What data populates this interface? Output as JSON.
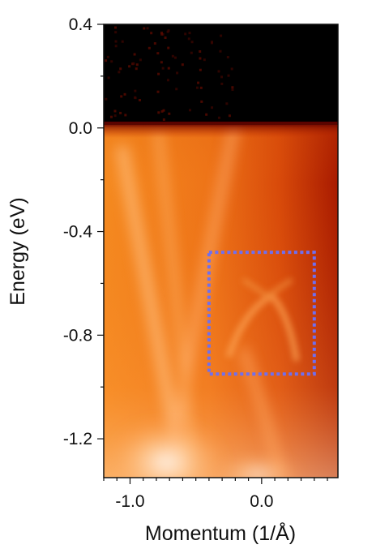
{
  "chart_data": {
    "type": "heatmap",
    "title": "",
    "xlabel": "Momentum (1/Å)",
    "ylabel": "Energy (eV)",
    "xlim": [
      -1.2,
      0.58
    ],
    "ylim": [
      -1.35,
      0.4
    ],
    "x_ticks": [
      {
        "value": -1.0,
        "label": "-1.0"
      },
      {
        "value": 0.0,
        "label": "0.0"
      }
    ],
    "y_ticks": [
      {
        "value": 0.4,
        "label": "0.4"
      },
      {
        "value": 0.0,
        "label": "0.0"
      },
      {
        "value": -0.4,
        "label": "-0.4"
      },
      {
        "value": -0.8,
        "label": "-0.8"
      },
      {
        "value": -1.2,
        "label": "-1.2"
      }
    ],
    "colormap": [
      "#000000",
      "#7a0a00",
      "#c42a00",
      "#f07a10",
      "#ffb060",
      "#fff6ee"
    ],
    "fermi_level_eV": 0.0,
    "highlight_box": {
      "x_range": [
        -0.4,
        0.4
      ],
      "y_range": [
        -0.95,
        -0.48
      ],
      "color": "#6f6ff0",
      "style": "dotted"
    },
    "grid": false,
    "legend": "none"
  }
}
